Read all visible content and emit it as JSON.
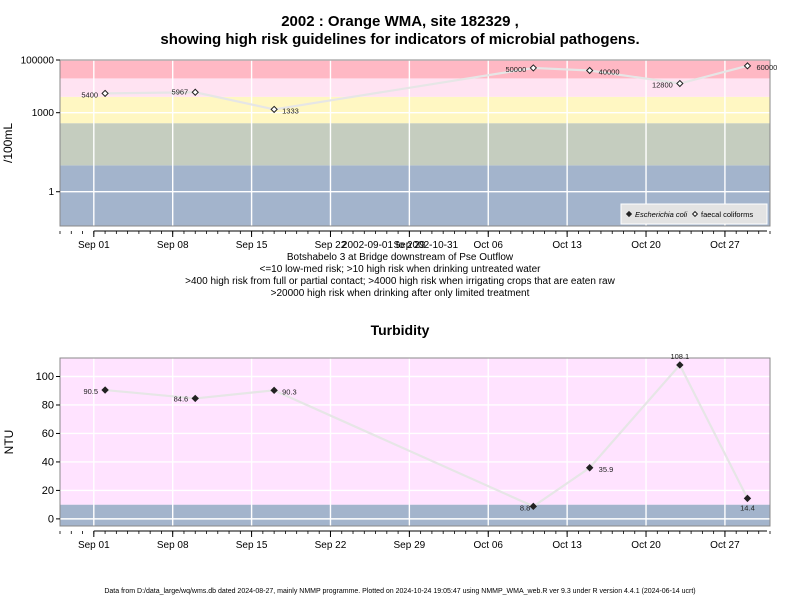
{
  "page": {
    "footer": "Data from D:/data_large/wq/wms.db dated 2024-08-27, mainly NMMP programme. Plotted on 2024-10-24 19:05:47 using NMMP_WMA_web.R ver 9.3 under R version 4.4.1 (2024-06-14 ucrt)"
  },
  "chart_data": [
    {
      "type": "scatter",
      "title_line1": "2002 : Orange WMA, site 182329 ,",
      "title_line2": "showing high risk guidelines for indicators of microbial pathogens.",
      "ylabel": "/100mL",
      "y_scale": "log",
      "ylim": [
        0.05,
        100000
      ],
      "yticks": [
        {
          "value": 1,
          "label": "1"
        },
        {
          "value": 1000,
          "label": "1000"
        },
        {
          "value": 100000,
          "label": "100000"
        }
      ],
      "x_range": [
        "2002-08-29",
        "2002-10-31"
      ],
      "xticks": [
        {
          "date": "2002-09-01",
          "label": "Sep 01"
        },
        {
          "date": "2002-09-08",
          "label": "Sep 08"
        },
        {
          "date": "2002-09-15",
          "label": "Sep 15"
        },
        {
          "date": "2002-09-22",
          "label": "Sep 22"
        },
        {
          "date": "2002-09-29",
          "label": "Sep 29"
        },
        {
          "date": "2002-10-06",
          "label": "Oct 06"
        },
        {
          "date": "2002-10-13",
          "label": "Oct 13"
        },
        {
          "date": "2002-10-20",
          "label": "Oct 20"
        },
        {
          "date": "2002-10-27",
          "label": "Oct 27"
        }
      ],
      "bands": [
        {
          "from": 0.05,
          "to": 10,
          "color": "#a3b4cc"
        },
        {
          "from": 10,
          "to": 400,
          "color": "#c5cdbf"
        },
        {
          "from": 400,
          "to": 4000,
          "color": "#fff7c2"
        },
        {
          "from": 4000,
          "to": 20000,
          "color": "#ffe3f2"
        },
        {
          "from": 20000,
          "to": 100000,
          "color": "#ffb8c4"
        }
      ],
      "series": [
        {
          "name": "faecal coliforms",
          "marker": "open-diamond",
          "points": [
            {
              "date": "2002-09-02",
              "value": 5400,
              "label": "5400"
            },
            {
              "date": "2002-09-10",
              "value": 5967,
              "label": "5967"
            },
            {
              "date": "2002-09-17",
              "value": 1333,
              "label": "1333"
            },
            {
              "date": "2002-10-10",
              "value": 50000,
              "label": "50000"
            },
            {
              "date": "2002-10-15",
              "value": 40000,
              "label": "40000"
            },
            {
              "date": "2002-10-23",
              "value": 12800,
              "label": "12800"
            },
            {
              "date": "2002-10-29",
              "value": 60000,
              "label": "60000"
            }
          ]
        }
      ],
      "legend": {
        "placement": "bottom-right",
        "items": [
          {
            "label": "Escherichia coli",
            "marker": "filled-diamond",
            "italic": true
          },
          {
            "label": "faecal coliforms",
            "marker": "open-diamond",
            "italic": false
          }
        ]
      },
      "caption": [
        "2002-09-01 to 2002-10-31",
        "Botshabelo 3 at Bridge downstream of Pse Outflow",
        "<=10 low-med risk; >10 high risk when drinking untreated water",
        ">400 high risk from full or partial contact; >4000 high risk when irrigating crops that are eaten raw",
        ">20000 high risk when drinking after only limited treatment"
      ]
    },
    {
      "type": "scatter",
      "title": "Turbidity",
      "ylabel": "NTU",
      "ylim": [
        -5,
        113
      ],
      "yticks": [
        0,
        20,
        40,
        60,
        80,
        100
      ],
      "x_range": [
        "2002-08-29",
        "2002-10-31"
      ],
      "xticks": [
        {
          "date": "2002-09-01",
          "label": "Sep 01"
        },
        {
          "date": "2002-09-08",
          "label": "Sep 08"
        },
        {
          "date": "2002-09-15",
          "label": "Sep 15"
        },
        {
          "date": "2002-09-22",
          "label": "Sep 22"
        },
        {
          "date": "2002-09-29",
          "label": "Sep 29"
        },
        {
          "date": "2002-10-06",
          "label": "Oct 06"
        },
        {
          "date": "2002-10-13",
          "label": "Oct 13"
        },
        {
          "date": "2002-10-20",
          "label": "Oct 20"
        },
        {
          "date": "2002-10-27",
          "label": "Oct 27"
        }
      ],
      "bands": [
        {
          "from": -5,
          "to": 10,
          "color": "#a3b4cc"
        },
        {
          "from": 10,
          "to": 113,
          "color": "#ffe3ff"
        }
      ],
      "series": [
        {
          "name": "Turbidity",
          "marker": "filled-diamond",
          "points": [
            {
              "date": "2002-09-02",
              "value": 90.5,
              "label": "90.5"
            },
            {
              "date": "2002-09-10",
              "value": 84.6,
              "label": "84.6"
            },
            {
              "date": "2002-09-17",
              "value": 90.3,
              "label": "90.3"
            },
            {
              "date": "2002-10-10",
              "value": 8.8,
              "label": "8.8"
            },
            {
              "date": "2002-10-15",
              "value": 35.9,
              "label": "35.9"
            },
            {
              "date": "2002-10-23",
              "value": 108.1,
              "label": "108.1"
            },
            {
              "date": "2002-10-29",
              "value": 14.4,
              "label": "14.4"
            }
          ]
        }
      ]
    }
  ]
}
